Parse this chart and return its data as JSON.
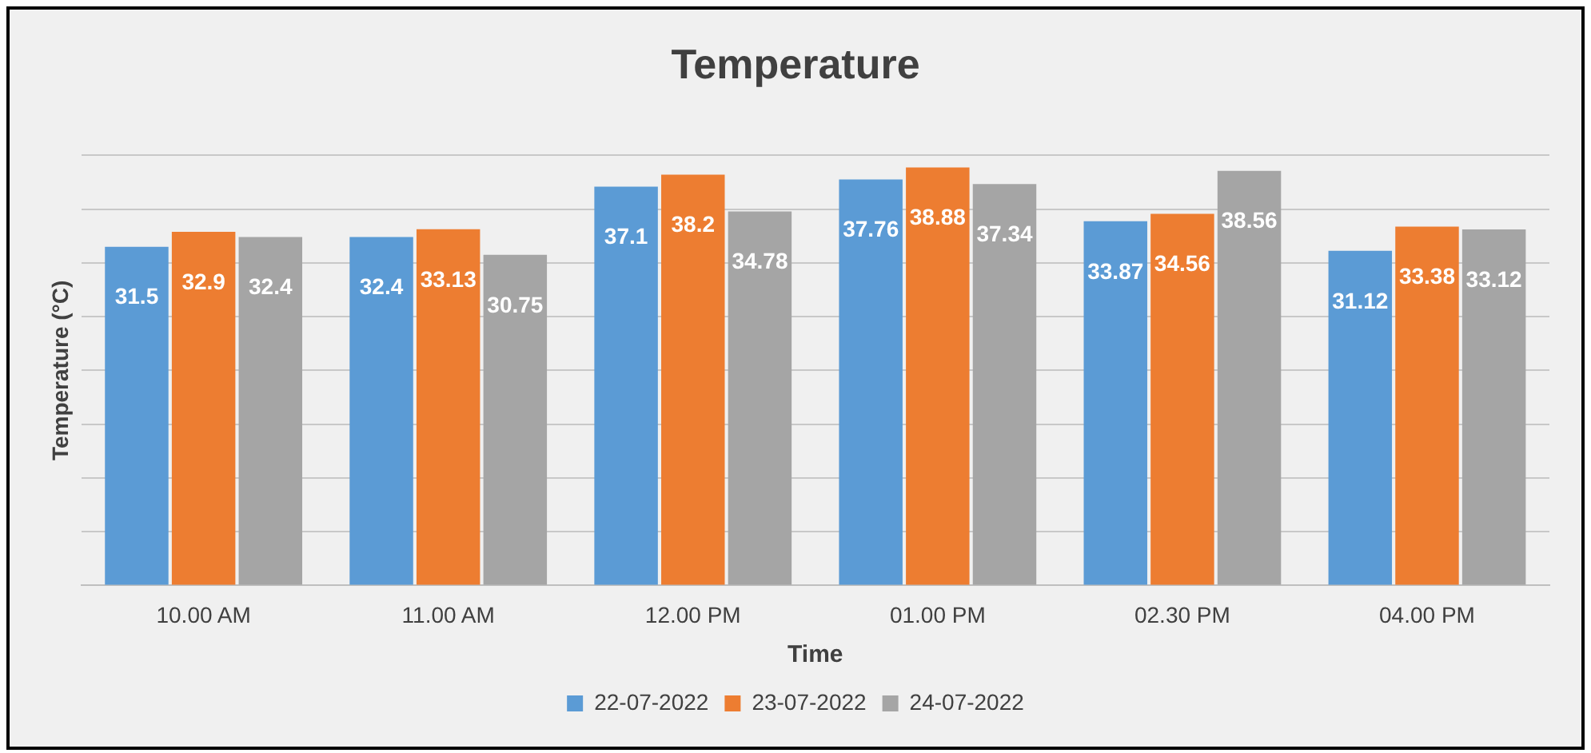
{
  "chart_data": {
    "type": "bar",
    "title": "Temperature",
    "xlabel": "Time",
    "ylabel": "Temperature (°C)",
    "categories": [
      "10.00 AM",
      "11.00 AM",
      "12.00 PM",
      "01.00 PM",
      "02.30 PM",
      "04.00 PM"
    ],
    "series": [
      {
        "name": "22-07-2022",
        "color": "#5b9bd5",
        "values": [
          31.5,
          32.4,
          37.1,
          37.76,
          33.87,
          31.12
        ]
      },
      {
        "name": "23-07-2022",
        "color": "#ed7d31",
        "values": [
          32.9,
          33.13,
          38.2,
          38.88,
          34.56,
          33.38
        ]
      },
      {
        "name": "24-07-2022",
        "color": "#a5a5a5",
        "values": [
          32.4,
          30.75,
          34.78,
          37.34,
          38.56,
          33.12
        ]
      }
    ],
    "ylim": [
      0,
      40
    ],
    "yticks": [
      {
        "value": 0,
        "label": null
      },
      {
        "value": 5,
        "label": null
      },
      {
        "value": 10,
        "label": null
      },
      {
        "value": 15,
        "label": null
      },
      {
        "value": 20,
        "label": null
      },
      {
        "value": 25,
        "label": null
      },
      {
        "value": 30,
        "label": null
      },
      {
        "value": 35,
        "label": null
      },
      {
        "value": 40,
        "label": null
      }
    ],
    "tick_labels": "x",
    "grid": "y",
    "legend": "bottom",
    "data_labels": true
  }
}
